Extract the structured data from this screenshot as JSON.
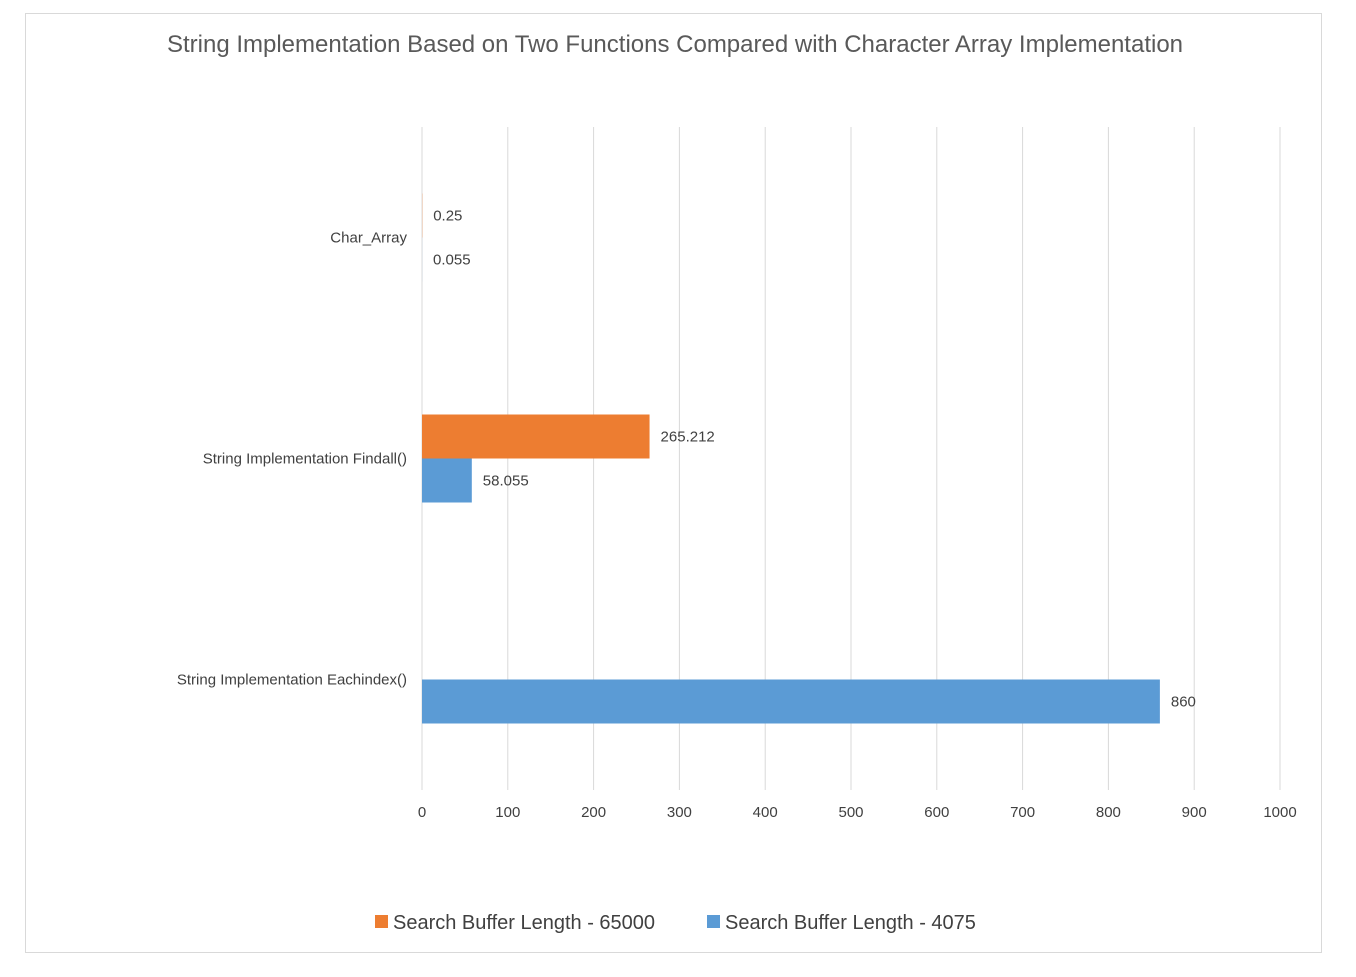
{
  "chart_data": {
    "type": "bar",
    "orientation": "horizontal",
    "title": "String Implementation Based on Two Functions Compared with Character Array Implementation",
    "xlabel": "",
    "ylabel": "",
    "categories": [
      "Char_Array",
      "String Implementation Findall()",
      "String Implementation Eachindex()"
    ],
    "series": [
      {
        "name": "Search Buffer Length - 65000",
        "color": "#ed7d31",
        "values": [
          0.25,
          265.212,
          null
        ],
        "labels": [
          "0.25",
          "265.212",
          ""
        ]
      },
      {
        "name": "Search Buffer Length - 4075",
        "color": "#5b9bd5",
        "values": [
          0.055,
          58.055,
          860
        ],
        "labels": [
          "0.055",
          "58.055",
          "860"
        ]
      }
    ],
    "xlim": [
      0,
      1000
    ],
    "xticks": [
      0,
      100,
      200,
      300,
      400,
      500,
      600,
      700,
      800,
      900,
      1000
    ],
    "grid": "vertical",
    "legend": "bottom"
  }
}
